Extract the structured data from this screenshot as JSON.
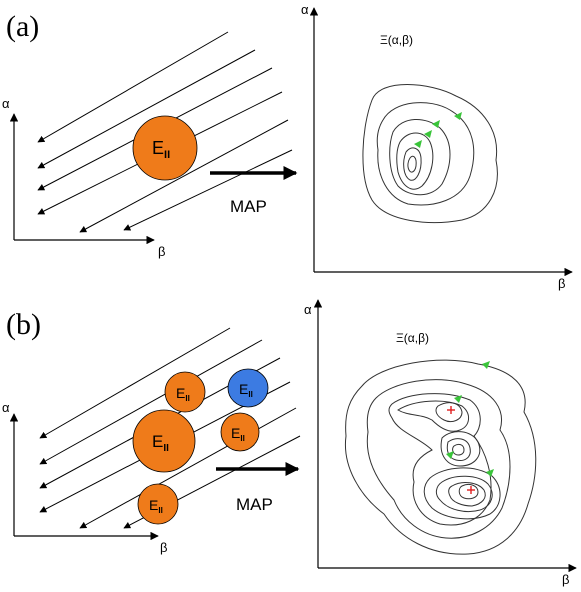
{
  "panels": [
    {
      "tag": "(a)",
      "axis_y": "α",
      "axis_x": "β",
      "ellipses": [
        {
          "label": "E",
          "subscript": "II",
          "color": "#ef7b1a"
        }
      ],
      "map_label": "MAP",
      "map_axis_y": "α",
      "map_axis_x": "β",
      "map_title": "Ξ(α,β)"
    },
    {
      "tag": "(b)",
      "axis_y": "α",
      "axis_x": "β",
      "ellipses": [
        {
          "label": "E",
          "subscript": "II",
          "color": "#ef7b1a"
        },
        {
          "label": "E",
          "subscript": "II",
          "color": "#3c7be2"
        },
        {
          "label": "E",
          "subscript": "II",
          "color": "#ef7b1a"
        },
        {
          "label": "E",
          "subscript": "II",
          "color": "#ef7b1a"
        },
        {
          "label": "E",
          "subscript": "II",
          "color": "#ef7b1a"
        }
      ],
      "map_label": "MAP",
      "map_axis_y": "α",
      "map_axis_x": "β",
      "map_title": "Ξ(α,β)"
    }
  ],
  "colors": {
    "orange": "#ef7b1a",
    "blue": "#3c7be2",
    "trajectory_arrow": "#3ac43a",
    "marker": "#e02020"
  }
}
